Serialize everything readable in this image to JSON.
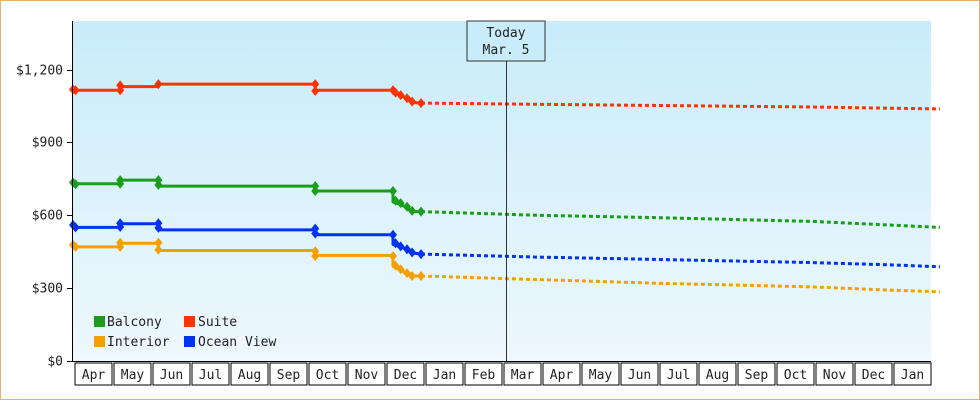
{
  "chart_data": {
    "type": "line",
    "ylim": [
      0,
      1400
    ],
    "y_ticks": [
      0,
      300,
      600,
      900,
      1200
    ],
    "y_tick_labels": [
      "$0",
      "$300",
      "$600",
      "$900",
      "$1,200"
    ],
    "x_range": [
      "2020-03-29",
      "2021-01-31"
    ],
    "month_labels": [
      "Apr",
      "May",
      "Jun",
      "Jul",
      "Aug",
      "Sep",
      "Oct",
      "Nov",
      "Dec",
      "Jan",
      "Feb",
      "Mar",
      "Apr",
      "May",
      "Jun",
      "Jul",
      "Aug",
      "Sep",
      "Oct",
      "Nov",
      "Dec",
      "Jan"
    ],
    "today": {
      "label": "Today",
      "date_label": "Mar. 5"
    },
    "grid": false,
    "legend_placement": "bottom-left",
    "series": [
      {
        "name": "Balcony",
        "color": "#1a9e1a",
        "history": [
          [
            0,
            730
          ],
          [
            37,
            730
          ],
          [
            37,
            745
          ],
          [
            67,
            745
          ],
          [
            67,
            720
          ],
          [
            190,
            720
          ],
          [
            190,
            700
          ],
          [
            251,
            700
          ],
          [
            251,
            655
          ],
          [
            257,
            645
          ],
          [
            262,
            630
          ],
          [
            266,
            615
          ],
          [
            273,
            615
          ]
        ],
        "forecast": [
          [
            273,
            615
          ],
          [
            365,
            600
          ],
          [
            460,
            590
          ],
          [
            580,
            575
          ],
          [
            640,
            560
          ],
          [
            680,
            550
          ]
        ]
      },
      {
        "name": "Suite",
        "color": "#ff3300",
        "history": [
          [
            0,
            1115
          ],
          [
            37,
            1115
          ],
          [
            37,
            1130
          ],
          [
            67,
            1130
          ],
          [
            67,
            1140
          ],
          [
            190,
            1140
          ],
          [
            190,
            1115
          ],
          [
            251,
            1115
          ],
          [
            251,
            1110
          ],
          [
            257,
            1095
          ],
          [
            262,
            1080
          ],
          [
            266,
            1065
          ],
          [
            273,
            1062
          ]
        ],
        "forecast": [
          [
            273,
            1062
          ],
          [
            365,
            1057
          ],
          [
            460,
            1052
          ],
          [
            580,
            1046
          ],
          [
            640,
            1041
          ],
          [
            680,
            1038
          ]
        ]
      },
      {
        "name": "Interior",
        "color": "#f5a000",
        "history": [
          [
            0,
            470
          ],
          [
            37,
            470
          ],
          [
            37,
            485
          ],
          [
            67,
            485
          ],
          [
            67,
            455
          ],
          [
            190,
            455
          ],
          [
            190,
            435
          ],
          [
            251,
            435
          ],
          [
            251,
            390
          ],
          [
            257,
            375
          ],
          [
            262,
            360
          ],
          [
            266,
            350
          ],
          [
            273,
            350
          ]
        ],
        "forecast": [
          [
            273,
            350
          ],
          [
            365,
            335
          ],
          [
            460,
            320
          ],
          [
            580,
            305
          ],
          [
            640,
            292
          ],
          [
            680,
            285
          ]
        ]
      },
      {
        "name": "Ocean View",
        "color": "#0033ee",
        "history": [
          [
            0,
            550
          ],
          [
            37,
            550
          ],
          [
            37,
            565
          ],
          [
            67,
            565
          ],
          [
            67,
            540
          ],
          [
            190,
            540
          ],
          [
            190,
            520
          ],
          [
            251,
            520
          ],
          [
            251,
            480
          ],
          [
            257,
            470
          ],
          [
            262,
            460
          ],
          [
            266,
            445
          ],
          [
            273,
            440
          ]
        ],
        "forecast": [
          [
            273,
            440
          ],
          [
            365,
            428
          ],
          [
            460,
            418
          ],
          [
            580,
            405
          ],
          [
            640,
            396
          ],
          [
            680,
            388
          ]
        ]
      }
    ],
    "markers": [
      {
        "series": "Balcony",
        "points": [
          [
            0,
            735
          ],
          [
            2,
            728
          ],
          [
            37,
            745
          ],
          [
            37,
            730
          ],
          [
            67,
            745
          ],
          [
            67,
            725
          ],
          [
            190,
            720
          ],
          [
            190,
            700
          ],
          [
            251,
            700
          ],
          [
            253,
            660
          ],
          [
            257,
            650
          ],
          [
            262,
            635
          ],
          [
            266,
            618
          ],
          [
            273,
            615
          ]
        ]
      },
      {
        "series": "Suite",
        "points": [
          [
            0,
            1118
          ],
          [
            2,
            1115
          ],
          [
            37,
            1135
          ],
          [
            37,
            1115
          ],
          [
            67,
            1140
          ],
          [
            190,
            1140
          ],
          [
            190,
            1112
          ],
          [
            251,
            1115
          ],
          [
            253,
            1105
          ],
          [
            257,
            1095
          ],
          [
            262,
            1082
          ],
          [
            266,
            1068
          ],
          [
            273,
            1062
          ]
        ]
      },
      {
        "series": "Interior",
        "points": [
          [
            0,
            478
          ],
          [
            2,
            470
          ],
          [
            37,
            487
          ],
          [
            37,
            470
          ],
          [
            67,
            487
          ],
          [
            67,
            458
          ],
          [
            190,
            452
          ],
          [
            190,
            432
          ],
          [
            251,
            432
          ],
          [
            253,
            392
          ],
          [
            257,
            378
          ],
          [
            262,
            362
          ],
          [
            266,
            350
          ],
          [
            273,
            350
          ]
        ]
      },
      {
        "series": "Ocean View",
        "points": [
          [
            0,
            560
          ],
          [
            2,
            550
          ],
          [
            37,
            567
          ],
          [
            37,
            552
          ],
          [
            67,
            567
          ],
          [
            67,
            548
          ],
          [
            190,
            545
          ],
          [
            190,
            525
          ],
          [
            251,
            520
          ],
          [
            253,
            485
          ],
          [
            257,
            472
          ],
          [
            262,
            460
          ],
          [
            266,
            447
          ],
          [
            273,
            440
          ]
        ]
      }
    ]
  }
}
